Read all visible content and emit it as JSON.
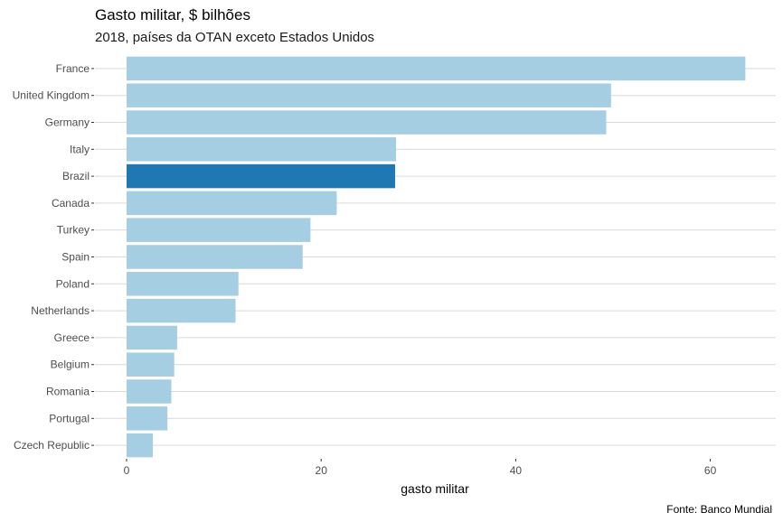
{
  "chart_data": {
    "type": "bar",
    "orientation": "horizontal",
    "title": "Gasto militar, $ bilhões",
    "subtitle": "2018, países da OTAN exceto Estados Unidos",
    "caption": "Fonte: Banco Mundial",
    "xlabel": "gasto militar",
    "ylabel": "",
    "xlim": [
      0,
      66
    ],
    "xticks": [
      0,
      20,
      40,
      60
    ],
    "grid": "horizontal-major",
    "legend": "none",
    "categories": [
      "France",
      "United Kingdom",
      "Germany",
      "Italy",
      "Brazil",
      "Canada",
      "Turkey",
      "Spain",
      "Poland",
      "Netherlands",
      "Greece",
      "Belgium",
      "Romania",
      "Portugal",
      "Czech Republic"
    ],
    "values": [
      63.6,
      49.8,
      49.3,
      27.7,
      27.6,
      21.6,
      18.9,
      18.1,
      11.5,
      11.2,
      5.2,
      4.9,
      4.6,
      4.2,
      2.7
    ],
    "highlight": "Brazil",
    "colors": {
      "default": "#a6cee3",
      "highlight": "#1f78b4",
      "grid": "#d9d9d9",
      "tick_text": "#4d4d4d"
    }
  }
}
